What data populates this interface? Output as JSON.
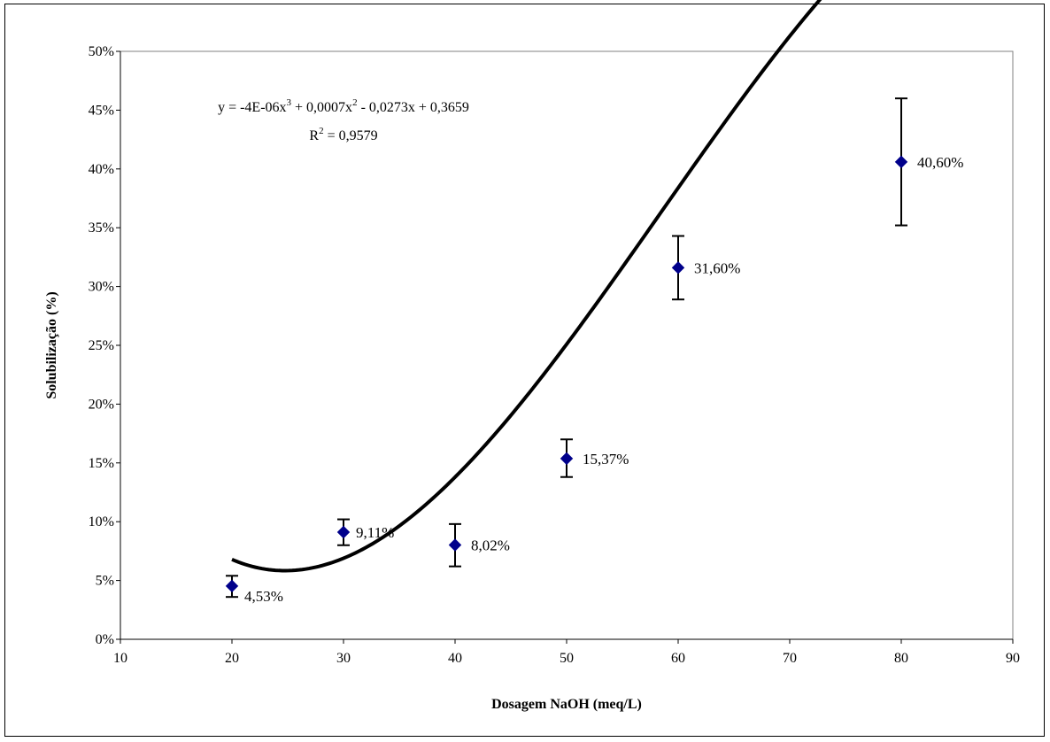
{
  "chart_data": {
    "type": "scatter",
    "xlabel": "Dosagem NaOH (meq/L)",
    "ylabel": "Solubilização (%)",
    "xlim": [
      10,
      90
    ],
    "ylim": [
      0,
      0.5
    ],
    "x_ticks": [
      "10",
      "20",
      "30",
      "40",
      "50",
      "60",
      "70",
      "80",
      "90"
    ],
    "y_ticks": [
      "0%",
      "5%",
      "10%",
      "15%",
      "20%",
      "25%",
      "30%",
      "35%",
      "40%",
      "45%",
      "50%"
    ],
    "grid": false,
    "legend": "none",
    "marker_color": "#00008B",
    "curve_color": "#000000",
    "points": [
      {
        "x": 20,
        "y": 0.0453,
        "err_low": 0.036,
        "err_high": 0.054,
        "label": "4,53%"
      },
      {
        "x": 30,
        "y": 0.0911,
        "err_low": 0.08,
        "err_high": 0.102,
        "label": "9,11%"
      },
      {
        "x": 40,
        "y": 0.0802,
        "err_low": 0.062,
        "err_high": 0.098,
        "label": "8,02%"
      },
      {
        "x": 50,
        "y": 0.1537,
        "err_low": 0.138,
        "err_high": 0.17,
        "label": "15,37%"
      },
      {
        "x": 60,
        "y": 0.316,
        "err_low": 0.289,
        "err_high": 0.343,
        "label": "31,60%"
      },
      {
        "x": 80,
        "y": 0.406,
        "err_low": 0.352,
        "err_high": 0.46,
        "label": "40,60%"
      }
    ],
    "trendline": {
      "type": "polynomial",
      "order": 3,
      "coefficients": [
        -4e-06,
        0.0007,
        -0.0273,
        0.3659
      ],
      "x_range": [
        20,
        80
      ]
    },
    "equation": {
      "prefix": "y = -4E-06x",
      "sup1": "3",
      "mid1": " + 0,0007x",
      "sup2": "2",
      "rest": " - 0,0273x + 0,3659",
      "r_prefix": "R",
      "r_sup": "2",
      "r_rest": " = 0,9579"
    }
  }
}
